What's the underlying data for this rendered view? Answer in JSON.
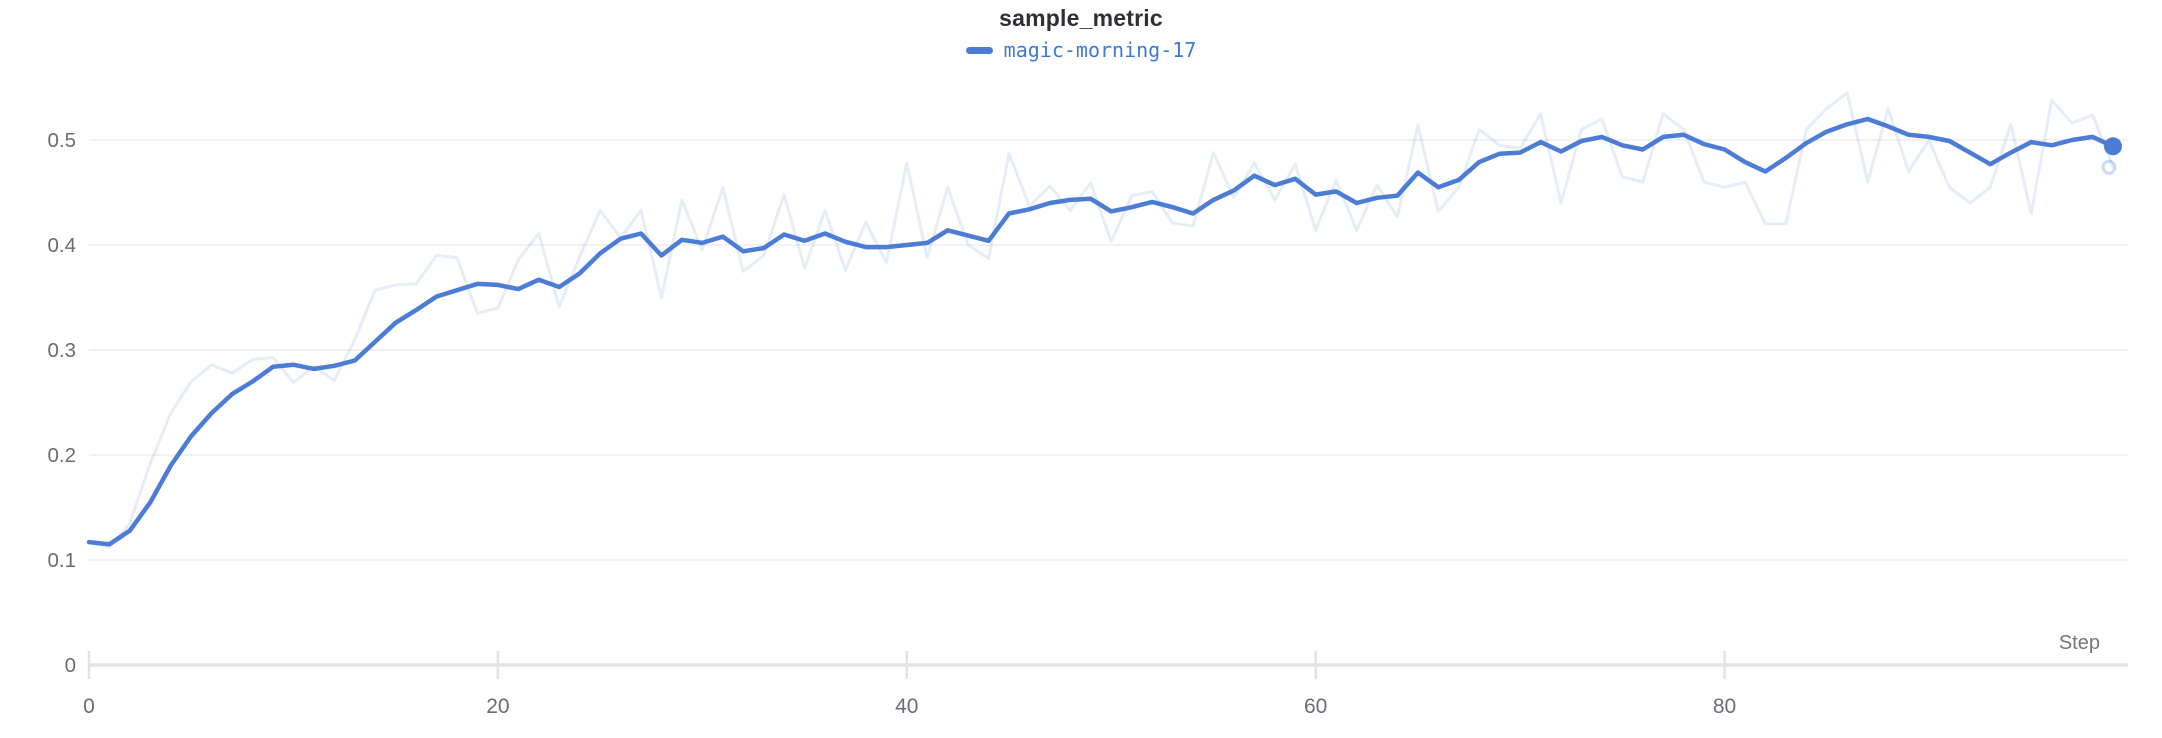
{
  "title": "sample_metric",
  "legend": {
    "series_label": "magic-morning-17"
  },
  "colors": {
    "line": "#4d7cd6",
    "raw_line": "#4d7cd6",
    "raw_line_opacity": 0.14,
    "legend_text": "#3d7ad4",
    "title_text": "#2f3033",
    "axis_label_text": "#6b6c73",
    "grid_line": "#ededef",
    "axis_line": "#e3e3e6"
  },
  "chart_data": {
    "type": "line",
    "title": "sample_metric",
    "xlabel": "Step",
    "ylabel": "",
    "x_range": [
      0,
      99
    ],
    "ylim": [
      0,
      0.55
    ],
    "x_ticks": [
      0,
      20,
      40,
      60,
      80
    ],
    "y_ticks": [
      0,
      0.1,
      0.2,
      0.3,
      0.4,
      0.5
    ],
    "grid": "horizontal",
    "legend_position": "top-center",
    "series": [
      {
        "name": "magic-morning-17",
        "role": "smoothed",
        "color": "#4d7cd6",
        "opacity": 1,
        "end_marker": true,
        "values": [
          0.117,
          0.115,
          0.128,
          0.155,
          0.19,
          0.218,
          0.24,
          0.258,
          0.27,
          0.284,
          0.286,
          0.282,
          0.285,
          0.29,
          0.308,
          0.326,
          0.338,
          0.351,
          0.357,
          0.363,
          0.362,
          0.358,
          0.367,
          0.36,
          0.373,
          0.392,
          0.406,
          0.411,
          0.39,
          0.405,
          0.402,
          0.408,
          0.394,
          0.397,
          0.41,
          0.404,
          0.411,
          0.403,
          0.398,
          0.398,
          0.4,
          0.402,
          0.414,
          0.409,
          0.404,
          0.43,
          0.434,
          0.44,
          0.443,
          0.444,
          0.432,
          0.436,
          0.441,
          0.436,
          0.43,
          0.443,
          0.452,
          0.466,
          0.457,
          0.463,
          0.448,
          0.451,
          0.44,
          0.445,
          0.447,
          0.469,
          0.455,
          0.462,
          0.479,
          0.487,
          0.488,
          0.498,
          0.489,
          0.499,
          0.503,
          0.495,
          0.491,
          0.503,
          0.505,
          0.496,
          0.491,
          0.479,
          0.47,
          0.483,
          0.497,
          0.508,
          0.515,
          0.52,
          0.513,
          0.505,
          0.503,
          0.499,
          0.488,
          0.477,
          0.488,
          0.498,
          0.495,
          0.5,
          0.503,
          0.494
        ]
      },
      {
        "name": "magic-morning-17",
        "role": "raw-unsmoothed",
        "color": "#4d7cd6",
        "opacity": 0.14,
        "end_marker": true,
        "values": [
          0.117,
          0.112,
          0.135,
          0.192,
          0.24,
          0.27,
          0.286,
          0.278,
          0.291,
          0.293,
          0.269,
          0.284,
          0.271,
          0.31,
          0.357,
          0.362,
          0.363,
          0.39,
          0.388,
          0.335,
          0.34,
          0.386,
          0.411,
          0.341,
          0.389,
          0.433,
          0.407,
          0.433,
          0.35,
          0.443,
          0.395,
          0.455,
          0.375,
          0.39,
          0.448,
          0.378,
          0.433,
          0.376,
          0.422,
          0.383,
          0.478,
          0.388,
          0.455,
          0.4,
          0.387,
          0.487,
          0.437,
          0.456,
          0.433,
          0.459,
          0.403,
          0.447,
          0.451,
          0.421,
          0.418,
          0.488,
          0.445,
          0.478,
          0.443,
          0.477,
          0.414,
          0.462,
          0.414,
          0.457,
          0.427,
          0.514,
          0.432,
          0.455,
          0.51,
          0.495,
          0.492,
          0.525,
          0.44,
          0.51,
          0.52,
          0.465,
          0.46,
          0.525,
          0.51,
          0.46,
          0.455,
          0.46,
          0.42,
          0.42,
          0.51,
          0.53,
          0.545,
          0.46,
          0.53,
          0.47,
          0.5,
          0.455,
          0.44,
          0.455,
          0.515,
          0.43,
          0.538,
          0.516,
          0.524,
          0.474
        ]
      }
    ]
  }
}
